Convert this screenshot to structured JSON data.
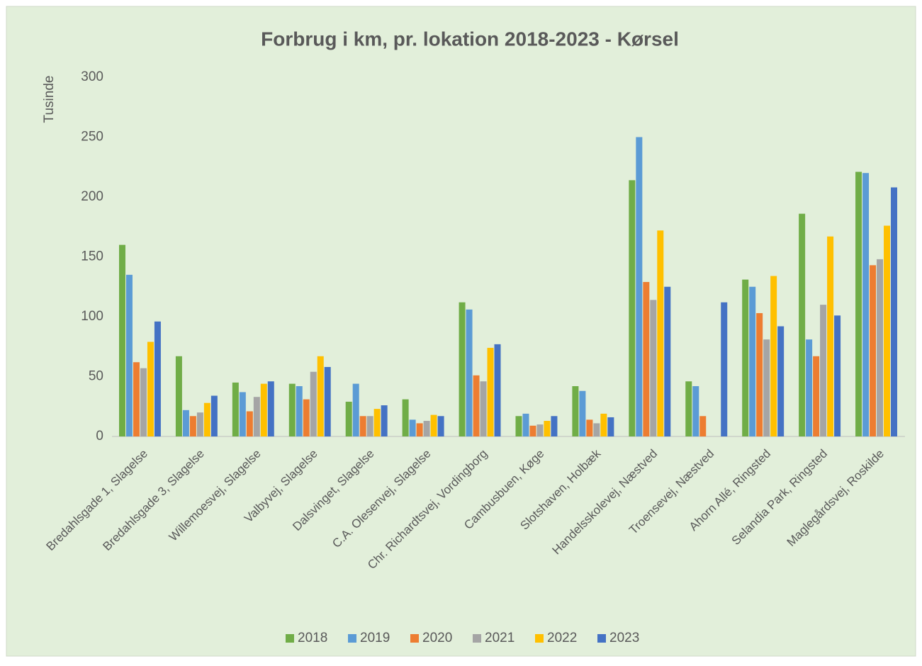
{
  "chart_data": {
    "type": "bar",
    "title": "Forbrug i km, pr. lokation 2018-2023 - Kørsel",
    "y_label": "Tusinde",
    "categories": [
      "Bredahlsgade 1, Slagelse",
      "Bredahlsgade 3, Slagelse",
      "Willemoesvej, Slagelse",
      "Valbyvej, Slagelse",
      "Dalsvinget, Slagelse",
      "C.A. Olesenvej, Slagelse",
      "Chr. Richardtsvej, Vordingborg",
      "Cambusbuen, Køge",
      "Slotshaven, Holbæk",
      "Handelsskolevej, Næstved",
      "Troensevej, Næstved",
      "Ahorn Allé, Ringsted",
      "Selandia Park, Ringsted",
      "Maglegårdsvej, Roskilde"
    ],
    "series": [
      {
        "name": "2018",
        "color": "#70ad47",
        "values": [
          160,
          67,
          45,
          44,
          29,
          31,
          112,
          17,
          42,
          214,
          46,
          131,
          186,
          221
        ]
      },
      {
        "name": "2019",
        "color": "#5b9bd5",
        "values": [
          135,
          22,
          37,
          42,
          44,
          14,
          106,
          19,
          38,
          250,
          42,
          125,
          81,
          220
        ]
      },
      {
        "name": "2020",
        "color": "#ed7d31",
        "values": [
          62,
          17,
          21,
          31,
          17,
          11,
          51,
          9,
          14,
          129,
          17,
          103,
          67,
          143
        ]
      },
      {
        "name": "2021",
        "color": "#a5a5a5",
        "values": [
          57,
          20,
          33,
          54,
          17,
          13,
          46,
          10,
          11,
          114,
          null,
          81,
          110,
          148
        ]
      },
      {
        "name": "2022",
        "color": "#ffc000",
        "values": [
          79,
          28,
          44,
          67,
          23,
          18,
          74,
          13,
          19,
          172,
          null,
          134,
          167,
          176
        ]
      },
      {
        "name": "2023",
        "color": "#4472c4",
        "values": [
          96,
          34,
          46,
          58,
          26,
          17,
          77,
          17,
          16,
          125,
          112,
          92,
          101,
          208
        ]
      }
    ],
    "ylim": [
      0,
      300
    ],
    "yticks": [
      0,
      50,
      100,
      150,
      200,
      250,
      300
    ],
    "grid": false,
    "legend": "bottom"
  }
}
